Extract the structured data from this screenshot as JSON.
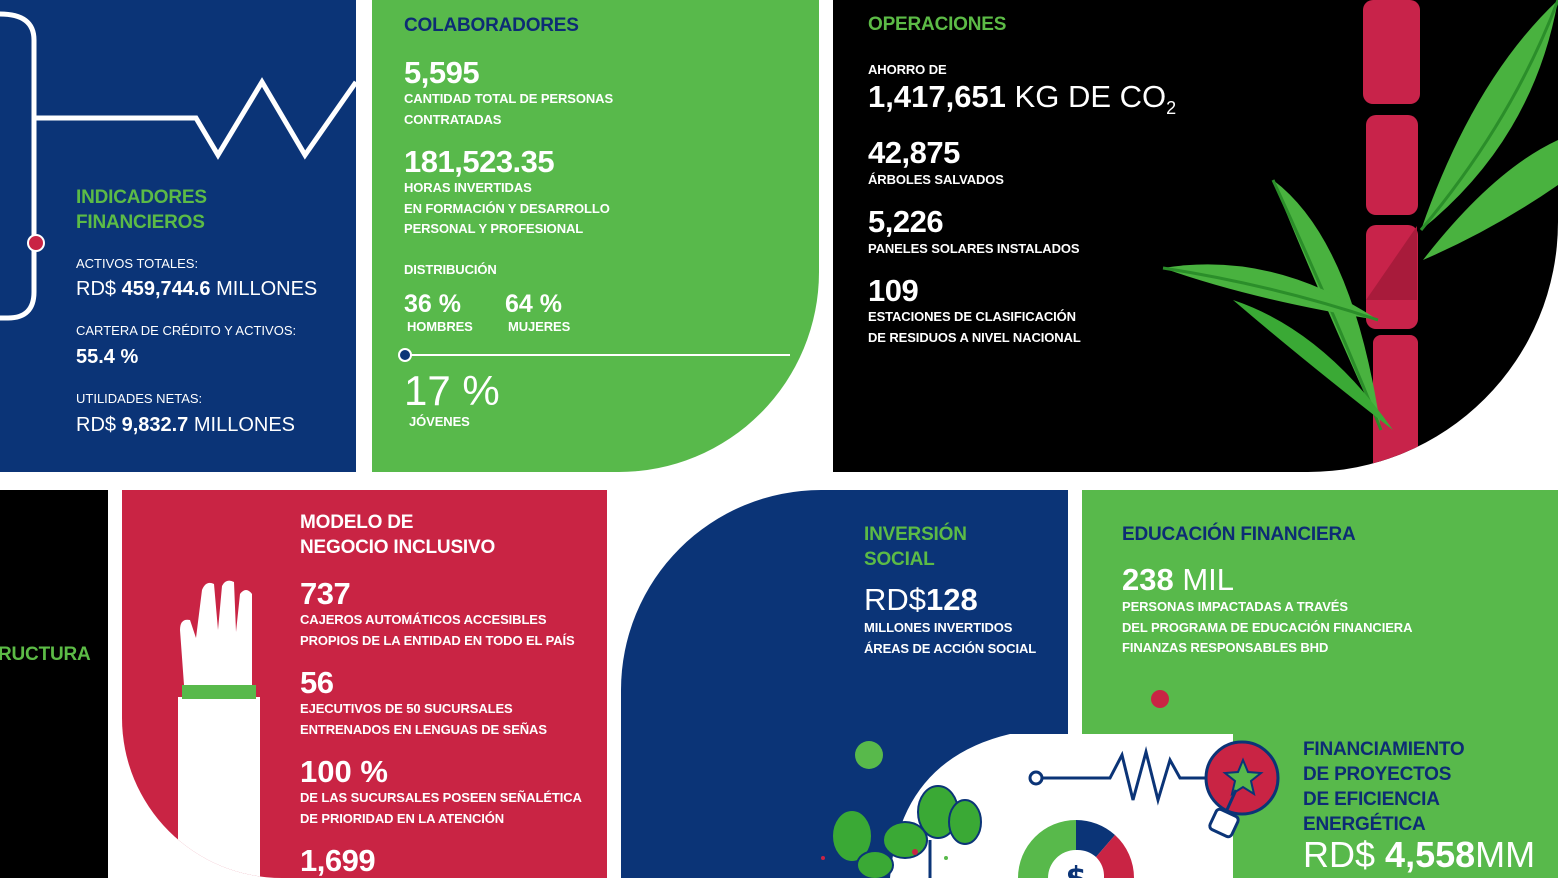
{
  "colors": {
    "navy": "#0b3477",
    "green": "#58b94b",
    "black": "#000000",
    "red": "#c92444",
    "leaf": "#3aa935",
    "bamboo": "#c8234a"
  },
  "financial": {
    "title": "INDICADORES FINANCIEROS",
    "title_line1": "INDICADORES",
    "title_line2": "FINANCIEROS",
    "total_assets_label": "ACTIVOS TOTALES:",
    "total_assets_prefix": "RD$",
    "total_assets_value": "459,744.6",
    "total_assets_unit": "MILLONES",
    "credit_label": "CARTERA DE CRÉDITO Y ACTIVOS:",
    "credit_value": "55.4 %",
    "net_income_label": "UTILIDADES NETAS:",
    "net_income_prefix": "RD$",
    "net_income_value": "9,832.7",
    "net_income_unit": "MILLONES"
  },
  "collaborators": {
    "title": "COLABORADORES",
    "total_value": "5,595",
    "total_label_1": "CANTIDAD TOTAL DE PERSONAS",
    "total_label_2": "CONTRATADAS",
    "hours_value": "181,523.35",
    "hours_label_1": "HORAS INVERTIDAS",
    "hours_label_2": "EN FORMACIÓN Y DESARROLLO",
    "hours_label_3": "PERSONAL Y PROFESIONAL",
    "distribution_label": "DISTRIBUCIÓN",
    "men_value": "36 %",
    "men_label": "HOMBRES",
    "women_value": "64 %",
    "women_label": "MUJERES",
    "youth_value": "17 %",
    "youth_label": "JÓVENES"
  },
  "operations": {
    "title": "OPERACIONES",
    "savings_label": "AHORRO DE",
    "savings_value": "1,417,651",
    "savings_unit": "KG DE CO",
    "savings_sub": "2",
    "trees_value": "42,875",
    "trees_label": "ÁRBOLES SALVADOS",
    "panels_value": "5,226",
    "panels_label": "PANELES SOLARES INSTALADOS",
    "stations_value": "109",
    "stations_label_1": "ESTACIONES DE CLASIFICACIÓN",
    "stations_label_2": "DE RESIDUOS A NIVEL NACIONAL"
  },
  "infrastructure": {
    "title_partial": "RUCTURA"
  },
  "inclusive": {
    "title_line1": "MODELO DE",
    "title_line2": "NEGOCIO INCLUSIVO",
    "atm_value": "737",
    "atm_label_1": "CAJEROS AUTOMÁTICOS ACCESIBLES",
    "atm_label_2": "PROPIOS DE LA ENTIDAD EN TODO EL PAÍS",
    "exec_value": "56",
    "exec_label_1a": "EJECUTIVOS DE",
    "exec_label_1b": "50",
    "exec_label_1c": "SUCURSALES",
    "exec_label_2": "ENTRENADOS EN LENGUAS DE SEÑAS",
    "branches_value": "100 %",
    "branches_label_1": "DE LAS SUCURSALES POSEEN SEÑALÉTICA",
    "branches_label_2": "DE PRIORIDAD EN LA ATENCIÓN",
    "extra_value": "1,699"
  },
  "social": {
    "title_line1": "INVERSIÓN",
    "title_line2": "SOCIAL",
    "value_prefix": "RD$",
    "value": "128",
    "label_1": "MILLONES INVERTIDOS",
    "label_2": "ÁREAS DE ACCIÓN SOCIAL"
  },
  "education": {
    "title": "EDUCACIÓN FINANCIERA",
    "value": "238",
    "unit": "MIL",
    "label_1": "PERSONAS IMPACTADAS A TRAVÉS",
    "label_2": "DEL PROGRAMA DE EDUCACIÓN FINANCIERA",
    "label_3": "FINANZAS RESPONSABLES BHD"
  },
  "energy": {
    "title_line1": "FINANCIAMIENTO",
    "title_line2": "DE PROYECTOS",
    "title_line3": "DE EFICIENCIA",
    "title_line4": "ENERGÉTICA",
    "value_prefix": "RD$",
    "value": "4,558",
    "unit": "MM"
  },
  "icons": [
    "heartbeat-line-icon",
    "bamboo-icon",
    "raised-hand-icon",
    "plant-icon",
    "donut-dollar-icon",
    "lightbulb-star-icon"
  ]
}
